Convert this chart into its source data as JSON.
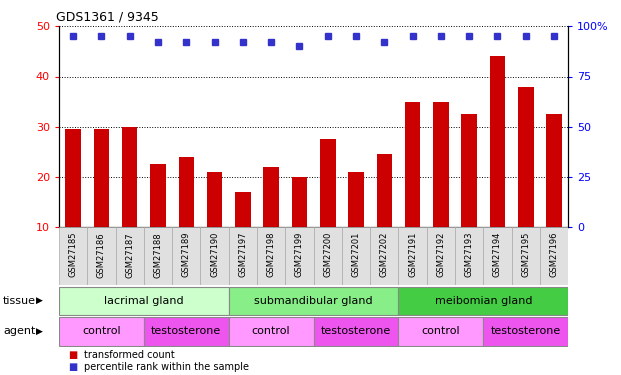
{
  "title": "GDS1361 / 9345",
  "samples": [
    "GSM27185",
    "GSM27186",
    "GSM27187",
    "GSM27188",
    "GSM27189",
    "GSM27190",
    "GSM27197",
    "GSM27198",
    "GSM27199",
    "GSM27200",
    "GSM27201",
    "GSM27202",
    "GSM27191",
    "GSM27192",
    "GSM27193",
    "GSM27194",
    "GSM27195",
    "GSM27196"
  ],
  "transformed_count": [
    29.5,
    29.5,
    30.0,
    22.5,
    24.0,
    21.0,
    17.0,
    22.0,
    20.0,
    27.5,
    21.0,
    24.5,
    35.0,
    35.0,
    32.5,
    44.0,
    38.0,
    32.5
  ],
  "percentile_rank": [
    95,
    95,
    95,
    92,
    92,
    92,
    92,
    92,
    90,
    95,
    95,
    92,
    95,
    95,
    95,
    95,
    95,
    95
  ],
  "ylim_left": [
    10,
    50
  ],
  "ylim_right": [
    0,
    100
  ],
  "yticks_left": [
    10,
    20,
    30,
    40,
    50
  ],
  "yticks_right": [
    0,
    25,
    50,
    75,
    100
  ],
  "bar_color": "#cc0000",
  "dot_color": "#3333cc",
  "tissue_groups": [
    {
      "label": "lacrimal gland",
      "start": 0,
      "end": 6,
      "color": "#ccffcc"
    },
    {
      "label": "submandibular gland",
      "start": 6,
      "end": 12,
      "color": "#88ee88"
    },
    {
      "label": "meibomian gland",
      "start": 12,
      "end": 18,
      "color": "#44cc44"
    }
  ],
  "agent_groups": [
    {
      "label": "control",
      "start": 0,
      "end": 3,
      "color": "#ff99ff"
    },
    {
      "label": "testosterone",
      "start": 3,
      "end": 6,
      "color": "#ee55ee"
    },
    {
      "label": "control",
      "start": 6,
      "end": 9,
      "color": "#ff99ff"
    },
    {
      "label": "testosterone",
      "start": 9,
      "end": 12,
      "color": "#ee55ee"
    },
    {
      "label": "control",
      "start": 12,
      "end": 15,
      "color": "#ff99ff"
    },
    {
      "label": "testosterone",
      "start": 15,
      "end": 18,
      "color": "#ee55ee"
    }
  ],
  "legend_red_label": "transformed count",
  "legend_blue_label": "percentile rank within the sample",
  "tissue_label": "tissue",
  "agent_label": "agent",
  "bar_width": 0.55,
  "bg_color": "#e0e0e0",
  "chart_bg": "#ffffff"
}
